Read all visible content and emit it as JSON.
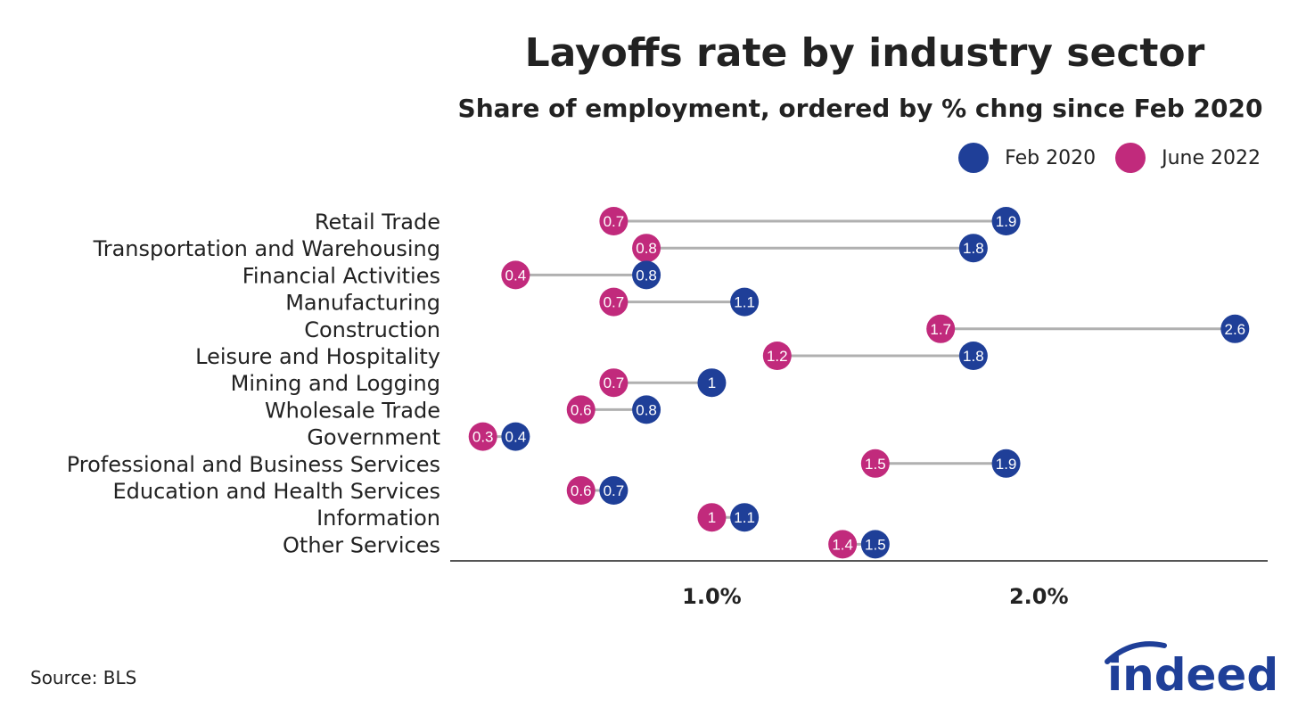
{
  "chart_data": {
    "type": "dumbbell",
    "title": "Layoffs rate by industry sector",
    "subtitle": "Share of employment, ordered by % chng since Feb 2020",
    "xlim": [
      0.2,
      2.7
    ],
    "x_ticks": [
      1.0,
      2.0
    ],
    "x_tick_labels": [
      "1.0%",
      "2.0%"
    ],
    "legend_position": "top-right",
    "grid": false,
    "categories": [
      "Retail Trade",
      "Transportation and Warehousing",
      "Financial Activities",
      "Manufacturing",
      "Construction",
      "Leisure and Hospitality",
      "Mining and Logging",
      "Wholesale Trade",
      "Government",
      "Professional and Business Services",
      "Education and Health Services",
      "Information",
      "Other Services"
    ],
    "series": [
      {
        "name": "Feb 2020",
        "color": "#1f3f98",
        "values": [
          1.9,
          1.8,
          0.8,
          1.1,
          2.6,
          1.8,
          1,
          0.8,
          0.4,
          1.9,
          0.7,
          1.1,
          1.5
        ],
        "labels": [
          "1.9",
          "1.8",
          "0.8",
          "1.1",
          "2.6",
          "1.8",
          "1",
          "0.8",
          "0.4",
          "1.9",
          "0.7",
          "1.1",
          "1.5"
        ]
      },
      {
        "name": "June 2022",
        "color": "#c12a7c",
        "values": [
          0.7,
          0.8,
          0.4,
          0.7,
          1.7,
          1.2,
          0.7,
          0.6,
          0.3,
          1.5,
          0.6,
          1,
          1.4
        ],
        "labels": [
          "0.7",
          "0.8",
          "0.4",
          "0.7",
          "1.7",
          "1.2",
          "0.7",
          "0.6",
          "0.3",
          "1.5",
          "0.6",
          "1",
          "1.4"
        ]
      }
    ],
    "connector_color": "#b0b0b0",
    "axis_color": "#555555"
  },
  "source": "Source: BLS",
  "logo": {
    "text": "indeed",
    "color": "#1f3f98"
  }
}
